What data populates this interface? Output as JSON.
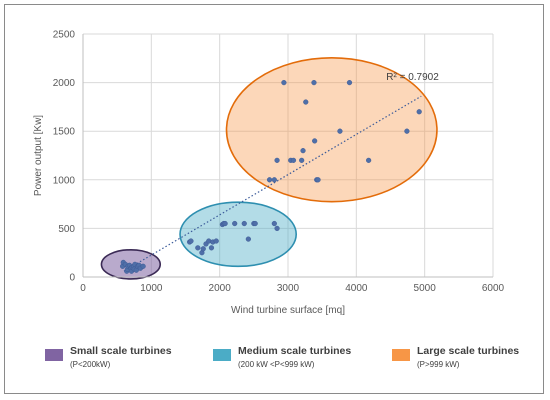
{
  "chart_data": {
    "type": "scatter",
    "xlabel": "Wind turbine surface [mq]",
    "ylabel": "Power  output [Kw]",
    "xlim": [
      0,
      6000
    ],
    "ylim": [
      0,
      2500
    ],
    "x_ticks": [
      "0",
      "1000",
      "2000",
      "3000",
      "4000",
      "5000",
      "6000"
    ],
    "y_ticks": [
      "0",
      "500",
      "1000",
      "1500",
      "2000",
      "2500"
    ],
    "grid": true,
    "trendline": {
      "style": "dotted linear",
      "x": [
        600,
        4950
      ],
      "y": [
        60,
        1860
      ],
      "label": "R² = 0.7902"
    },
    "groups": [
      {
        "name": "Small scale turbines",
        "range": "(P<200kW)",
        "color": "#8064a2",
        "ellipse": {
          "cx": 700,
          "cy": 130,
          "rx": 430,
          "ry": 150
        }
      },
      {
        "name": "Medium scale turbines",
        "range": "(200 kW <P<999 kW)",
        "color": "#4bacc6",
        "ellipse": {
          "cx": 2270,
          "cy": 440,
          "rx": 850,
          "ry": 330
        }
      },
      {
        "name": "Large scale turbines",
        "range": "(P>999 kW)",
        "color": "#f79646",
        "ellipse": {
          "cx": 3640,
          "cy": 1515,
          "rx": 1540,
          "ry": 740
        }
      }
    ],
    "series": [
      {
        "points": [
          [
            580,
            110
          ],
          [
            590,
            150
          ],
          [
            620,
            130
          ],
          [
            640,
            60
          ],
          [
            650,
            80
          ],
          [
            660,
            110
          ],
          [
            680,
            120
          ],
          [
            700,
            90
          ],
          [
            710,
            60
          ],
          [
            720,
            100
          ],
          [
            740,
            110
          ],
          [
            750,
            80
          ],
          [
            760,
            130
          ],
          [
            780,
            70
          ],
          [
            800,
            110
          ],
          [
            820,
            120
          ],
          [
            840,
            90
          ],
          [
            880,
            110
          ],
          [
            1560,
            360
          ],
          [
            1580,
            370
          ],
          [
            1680,
            300
          ],
          [
            1740,
            250
          ],
          [
            1760,
            290
          ],
          [
            1800,
            340
          ],
          [
            1840,
            370
          ],
          [
            1880,
            300
          ],
          [
            1900,
            360
          ],
          [
            1950,
            370
          ],
          [
            2040,
            540
          ],
          [
            2060,
            550
          ],
          [
            2080,
            550
          ],
          [
            2220,
            550
          ],
          [
            2360,
            550
          ],
          [
            2420,
            390
          ],
          [
            2500,
            550
          ],
          [
            2520,
            550
          ],
          [
            2800,
            550
          ],
          [
            2840,
            500
          ],
          [
            2730,
            1000
          ],
          [
            2800,
            1000
          ],
          [
            2840,
            1200
          ],
          [
            2940,
            2000
          ],
          [
            3040,
            1200
          ],
          [
            3080,
            1200
          ],
          [
            3200,
            1200
          ],
          [
            3220,
            1300
          ],
          [
            3260,
            1800
          ],
          [
            3380,
            2000
          ],
          [
            3390,
            1400
          ],
          [
            3420,
            1000
          ],
          [
            3440,
            1000
          ],
          [
            3760,
            1500
          ],
          [
            3900,
            2000
          ],
          [
            4180,
            1200
          ],
          [
            4740,
            1500
          ],
          [
            4920,
            1700
          ]
        ]
      }
    ]
  }
}
